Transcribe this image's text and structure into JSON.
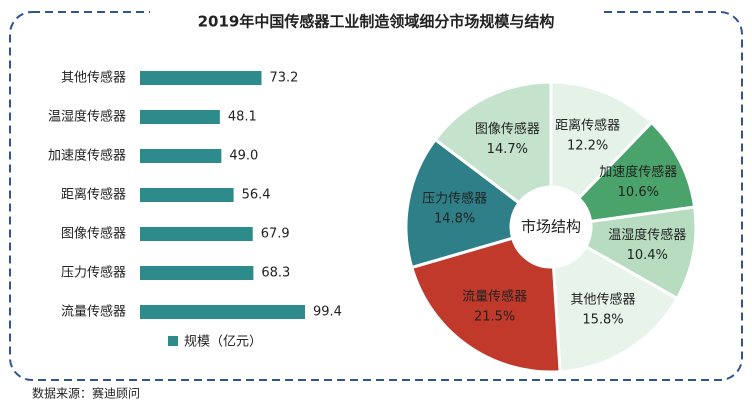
{
  "title": "2019年中国传感器工业制造领域细分市场规模与结构",
  "source": "数据来源：赛迪顾问",
  "chart_data": [
    {
      "type": "bar",
      "orientation": "horizontal",
      "categories": [
        "其他传感器",
        "温湿度传感器",
        "加速度传感器",
        "距离传感器",
        "图像传感器",
        "压力传感器",
        "流量传感器"
      ],
      "series": [
        {
          "name": "规模（亿元）",
          "color": "#2e8b8b",
          "values": [
            73.2,
            48.1,
            49.0,
            56.4,
            67.9,
            68.3,
            99.4
          ],
          "value_labels": [
            "73.2",
            "48.1",
            "49.0",
            "56.4",
            "67.9",
            "68.3",
            "99.4"
          ]
        }
      ]
    },
    {
      "type": "pie",
      "center_label": "市场结构",
      "categories": [
        "距离传感器",
        "加速度传感器",
        "温湿度传感器",
        "其他传感器",
        "流量传感器",
        "压力传感器",
        "图像传感器"
      ],
      "values": [
        12.2,
        10.6,
        10.4,
        15.8,
        21.5,
        14.8,
        14.7
      ],
      "value_labels": [
        "12.2%",
        "10.6%",
        "10.4%",
        "15.8%",
        "21.5%",
        "14.8%",
        "14.7%"
      ],
      "colors": [
        "#e4f2e7",
        "#4aa36a",
        "#b7dcc0",
        "#e8f3ea",
        "#c0392b",
        "#2e7f87",
        "#c4e2cc"
      ]
    }
  ]
}
